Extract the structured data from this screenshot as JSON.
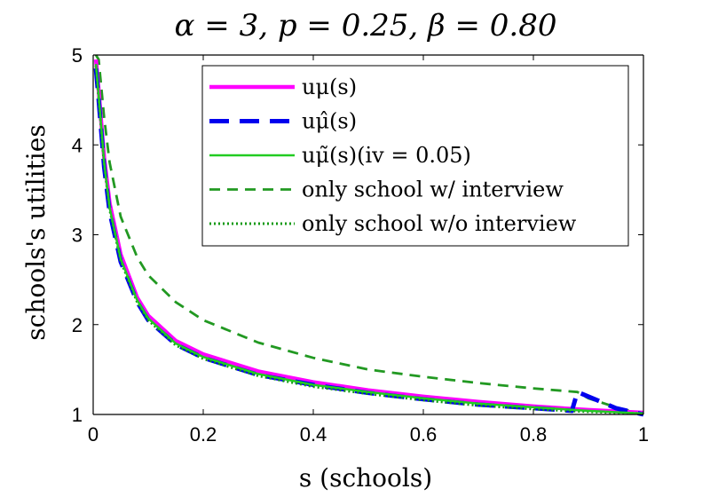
{
  "chart_data": {
    "type": "line",
    "title": "α = 3, p = 0.25, β = 0.80",
    "xlabel": "s (schools)",
    "ylabel": "schools's utilities",
    "xlim": [
      0,
      1
    ],
    "ylim": [
      1,
      5
    ],
    "xticks": [
      "0",
      "0.2",
      "0.4",
      "0.6",
      "0.8",
      "1"
    ],
    "yticks": [
      "1",
      "2",
      "3",
      "4",
      "5"
    ],
    "grid": false,
    "legend_position": "top-right",
    "series": [
      {
        "name": "uμ(s)",
        "color": "#ff00ff",
        "style": "solid-thick",
        "x": [
          0.005,
          0.01,
          0.02,
          0.03,
          0.05,
          0.08,
          0.1,
          0.15,
          0.2,
          0.3,
          0.4,
          0.5,
          0.6,
          0.7,
          0.8,
          0.9,
          1.0
        ],
        "y": [
          4.95,
          4.6,
          3.85,
          3.35,
          2.78,
          2.3,
          2.1,
          1.82,
          1.67,
          1.48,
          1.36,
          1.27,
          1.2,
          1.14,
          1.09,
          1.05,
          1.02
        ]
      },
      {
        "name": "uμ̂(s)",
        "color": "#0000ee",
        "style": "dashed-thick",
        "x": [
          0.005,
          0.01,
          0.02,
          0.03,
          0.05,
          0.08,
          0.1,
          0.15,
          0.2,
          0.3,
          0.4,
          0.5,
          0.6,
          0.7,
          0.8,
          0.87,
          0.88,
          0.9,
          0.95,
          1.0
        ],
        "y": [
          4.85,
          4.5,
          3.75,
          3.25,
          2.7,
          2.25,
          2.05,
          1.78,
          1.63,
          1.44,
          1.33,
          1.24,
          1.17,
          1.11,
          1.07,
          1.04,
          1.25,
          1.2,
          1.07,
          1.0
        ]
      },
      {
        "name": "uμ̃(s)(iv = 0.05)",
        "color": "#22cc22",
        "style": "solid",
        "x": [
          0.005,
          0.01,
          0.02,
          0.03,
          0.05,
          0.08,
          0.1,
          0.15,
          0.2,
          0.3,
          0.4,
          0.5,
          0.6,
          0.7,
          0.8,
          0.9,
          1.0
        ],
        "y": [
          4.9,
          4.55,
          3.8,
          3.3,
          2.73,
          2.27,
          2.07,
          1.79,
          1.64,
          1.45,
          1.33,
          1.25,
          1.18,
          1.12,
          1.08,
          1.04,
          1.01
        ]
      },
      {
        "name": "only school w/ interview",
        "color": "#229922",
        "style": "dashed",
        "x": [
          0.005,
          0.01,
          0.02,
          0.03,
          0.05,
          0.08,
          0.1,
          0.15,
          0.2,
          0.3,
          0.4,
          0.5,
          0.6,
          0.7,
          0.8,
          0.88,
          0.9,
          0.95,
          1.0
        ],
        "y": [
          5.0,
          4.95,
          4.3,
          3.8,
          3.2,
          2.75,
          2.55,
          2.25,
          2.05,
          1.8,
          1.63,
          1.5,
          1.42,
          1.35,
          1.29,
          1.25,
          1.18,
          1.08,
          1.0
        ]
      },
      {
        "name": "only school w/o interview",
        "color": "#119911",
        "style": "dotted",
        "x": [
          0.005,
          0.01,
          0.02,
          0.03,
          0.05,
          0.08,
          0.1,
          0.15,
          0.2,
          0.3,
          0.4,
          0.5,
          0.6,
          0.7,
          0.8,
          0.9,
          1.0
        ],
        "y": [
          4.88,
          4.52,
          3.78,
          3.28,
          2.71,
          2.25,
          2.05,
          1.77,
          1.62,
          1.43,
          1.31,
          1.23,
          1.16,
          1.1,
          1.06,
          1.03,
          1.01
        ]
      }
    ]
  }
}
